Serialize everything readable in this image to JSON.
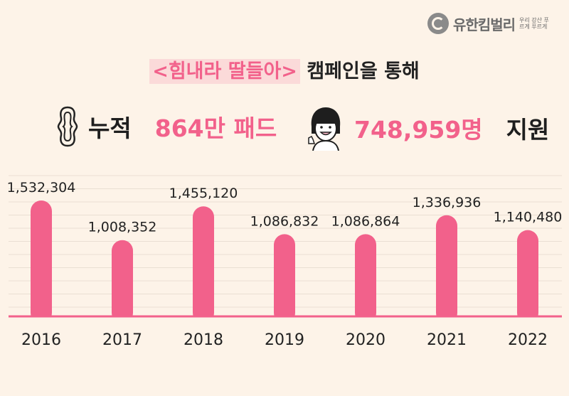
{
  "brand": {
    "name": "유한킴벌리",
    "slogan": "우리 강산 푸르게 푸르게"
  },
  "headline": {
    "highlight": "<힘내라 딸들아>",
    "rest": "캠페인을 통해"
  },
  "stats": [
    {
      "label": "누적",
      "value": "864만 패드",
      "icon": "sanitary-pad-icon"
    },
    {
      "value": "748,959명",
      "label": "지원",
      "icon": "smiling-girl-icon"
    }
  ],
  "colors": {
    "accent": "#f2618b",
    "background": "#fdf3e8",
    "highlight_bg": "#fbdad9"
  },
  "chart_data": {
    "type": "bar",
    "categories": [
      "2016",
      "2017",
      "2018",
      "2019",
      "2020",
      "2021",
      "2022"
    ],
    "values": [
      1532304,
      1008352,
      1455120,
      1086832,
      1086864,
      1336936,
      1140480
    ],
    "value_labels": [
      "1,532,304",
      "1,008,352",
      "1,455,120",
      "1,086,832",
      "1,086,864",
      "1,336,936",
      "1,140,480"
    ],
    "ylim": [
      0,
      1600000
    ],
    "grid": true,
    "bar_color": "#f2618b"
  }
}
